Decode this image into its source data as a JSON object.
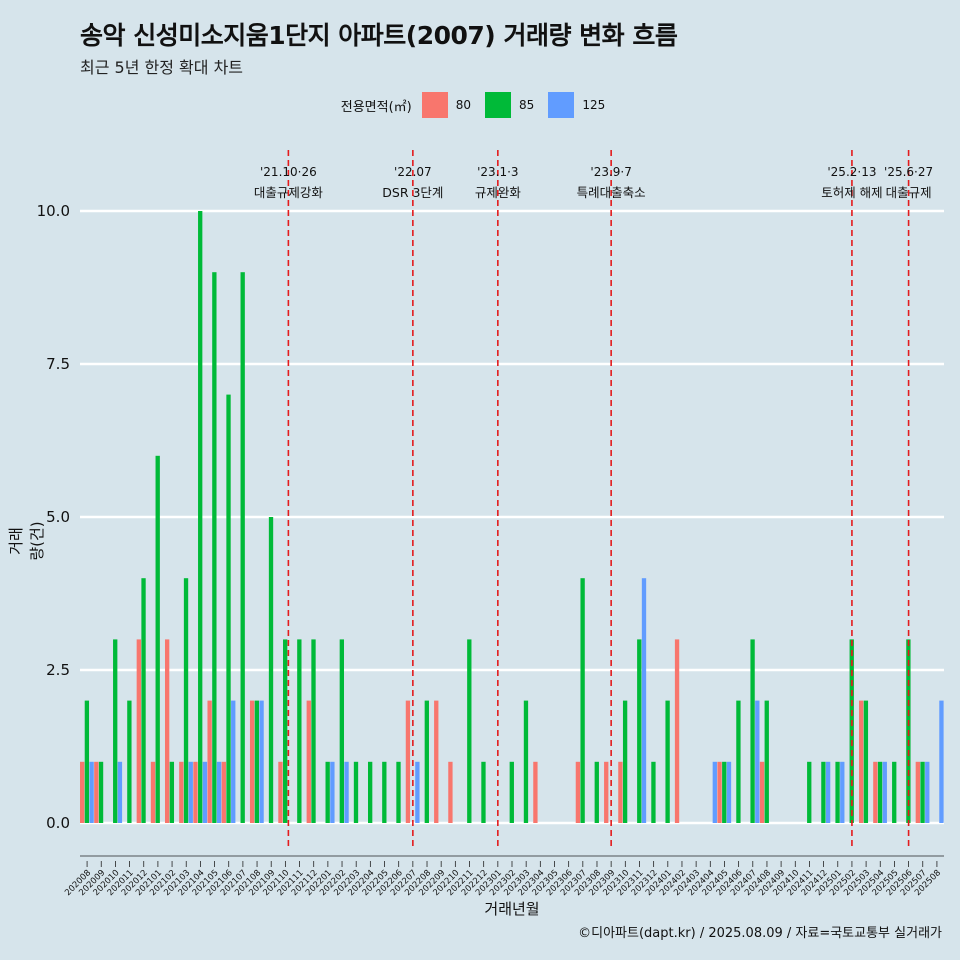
{
  "title": "송악 신성미소지움1단지 아파트(2007) 거래량 변화 흐름",
  "subtitle": "최근 5년 한정 확대 차트",
  "caption": "©디아파트(dapt.kr) / 2025.08.09 / 자료=국토교통부 실거래가",
  "colors": {
    "80": "#f8766d",
    "85": "#00ba38",
    "125": "#619cff",
    "background": "#d6e4eb",
    "event_line": "#e31a1c"
  },
  "chart_data": {
    "type": "bar",
    "xlabel": "거래년월",
    "ylabel": "거래량(건)",
    "ylim": [
      0,
      10
    ],
    "yticks": [
      "0.0",
      "2.5",
      "5.0",
      "7.5",
      "10.0"
    ],
    "legend_title": "전용면적(㎡)",
    "legend_position": "top",
    "grid": true,
    "categories": [
      "202008",
      "202009",
      "202010",
      "202011",
      "202012",
      "202101",
      "202102",
      "202103",
      "202104",
      "202105",
      "202106",
      "202107",
      "202108",
      "202109",
      "202110",
      "202111",
      "202112",
      "202201",
      "202202",
      "202203",
      "202204",
      "202205",
      "202206",
      "202207",
      "202208",
      "202209",
      "202210",
      "202211",
      "202212",
      "202301",
      "202302",
      "202303",
      "202304",
      "202305",
      "202306",
      "202307",
      "202308",
      "202309",
      "202310",
      "202311",
      "202312",
      "202401",
      "202402",
      "202403",
      "202404",
      "202405",
      "202406",
      "202407",
      "202408",
      "202409",
      "202410",
      "202411",
      "202412",
      "202501",
      "202502",
      "202503",
      "202504",
      "202505",
      "202506",
      "202507",
      "202508"
    ],
    "series": [
      {
        "name": "80",
        "values": [
          1,
          1,
          0,
          0,
          3,
          1,
          3,
          1,
          1,
          2,
          1,
          0,
          2,
          0,
          1,
          0,
          2,
          0,
          0,
          0,
          0,
          0,
          0,
          2,
          0,
          2,
          1,
          0,
          0,
          0,
          0,
          0,
          1,
          0,
          0,
          1,
          0,
          1,
          1,
          0,
          0,
          0,
          3,
          0,
          0,
          1,
          0,
          0,
          1,
          0,
          0,
          0,
          0,
          0,
          0,
          2,
          1,
          0,
          0,
          1,
          0
        ]
      },
      {
        "name": "85",
        "values": [
          2,
          1,
          3,
          2,
          4,
          6,
          1,
          4,
          10,
          9,
          7,
          9,
          2,
          5,
          3,
          3,
          3,
          1,
          3,
          1,
          1,
          1,
          1,
          0,
          2,
          0,
          0,
          3,
          1,
          0,
          1,
          2,
          0,
          0,
          0,
          4,
          1,
          0,
          2,
          3,
          1,
          2,
          0,
          0,
          0,
          1,
          2,
          3,
          2,
          0,
          0,
          1,
          1,
          1,
          3,
          2,
          1,
          1,
          3,
          1,
          0
        ]
      },
      {
        "name": "125",
        "values": [
          1,
          0,
          1,
          0,
          0,
          0,
          0,
          1,
          1,
          1,
          2,
          0,
          2,
          0,
          0,
          0,
          0,
          1,
          1,
          0,
          0,
          0,
          0,
          1,
          0,
          0,
          0,
          0,
          0,
          0,
          0,
          0,
          0,
          0,
          0,
          0,
          0,
          0,
          0,
          4,
          0,
          0,
          0,
          0,
          1,
          1,
          0,
          2,
          0,
          0,
          0,
          0,
          1,
          1,
          0,
          0,
          1,
          0,
          0,
          1,
          2
        ]
      }
    ],
    "events": [
      {
        "date": "'21.10·26",
        "label": "대출규제강화",
        "x": 14
      },
      {
        "date": "'22.07",
        "label": "DSR 3단계",
        "x": 23
      },
      {
        "date": "'23.1·3",
        "label": "규제완화",
        "x": 29
      },
      {
        "date": "'23.9·7",
        "label": "특례대출축소",
        "x": 37
      },
      {
        "date": "'25.2·13",
        "label": "토허제 해제",
        "x": 54
      },
      {
        "date": "'25.6·27",
        "label": "대출규제",
        "x": 58
      }
    ]
  }
}
